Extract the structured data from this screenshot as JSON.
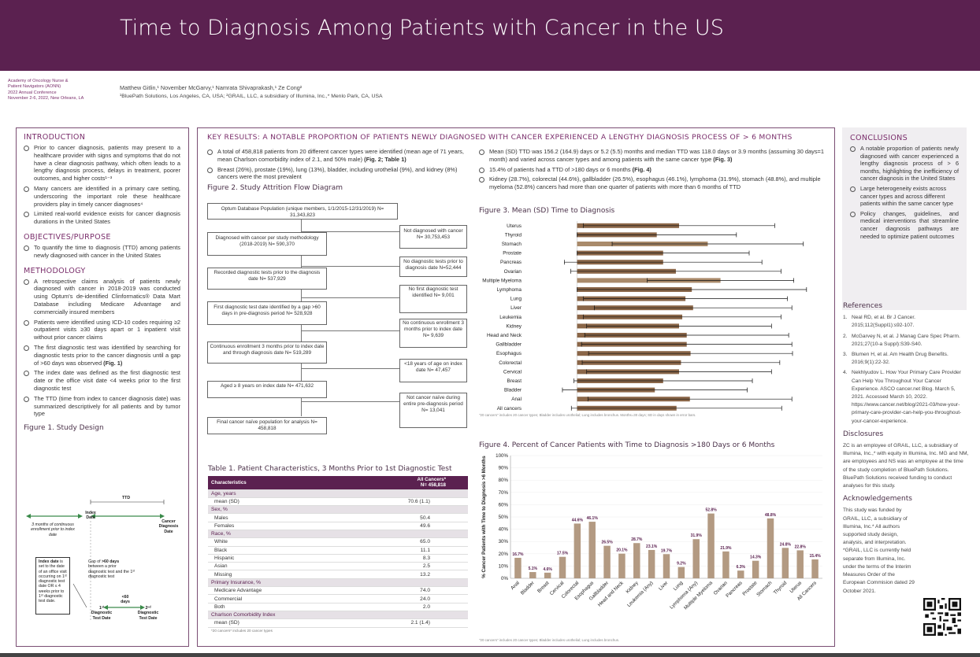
{
  "header": {
    "title": "Time to Diagnosis Among Patients with Cancer in the US"
  },
  "conference": {
    "line1": "Academy of Oncology Nurse &",
    "line2": "Patient Navigators (AONN)",
    "line3": "2022 Annual Conference",
    "line4": "November 2-6, 2022, New Orleans, LA"
  },
  "authors": {
    "names": "Matthew Gitlin,¹ November McGarvy,¹ Namrata Shivaprakash,¹ Ze Cong²",
    "affiliations": "¹BluePath Solutions, Los Angeles, CA, USA;  ²GRAIL, LLC, a subsidiary of Illumina, Inc.,* Menlo Park, CA, USA"
  },
  "introduction": {
    "heading": "INTRODUCTION",
    "b1": "Prior to cancer diagnosis, patients may present to a healthcare provider with signs and symptoms that do not have a clear diagnosis pathway, which often leads to a lengthy diagnosis process, delays in treatment, poorer outcomes, and higher costs¹⁻³",
    "b2": "Many cancers are identified in a primary care setting, underscoring the important role these healthcare providers play in timely cancer diagnoses⁴",
    "b3": "Limited real-world evidence exists for cancer diagnosis durations in the United States"
  },
  "objectives": {
    "heading": "OBJECTIVES/PURPOSE",
    "b1": "To quantify the time to diagnosis (TTD) among patients newly diagnosed with cancer in the United States"
  },
  "methodology": {
    "heading": "METHODOLOGY",
    "b1": "A retrospective claims analysis of patients newly diagnosed with cancer in 2018-2019 was conducted using Optum's de-identified Clinformatics® Data Mart Database including Medicare Advantage and commercially insured members",
    "b2": "Patients were identified using ICD-10 codes requiring ≥2 outpatient visits ≥30 days apart or 1 inpatient visit without prior cancer claims",
    "b3": "The first diagnostic test was identified by searching for diagnostic tests prior to the cancer diagnosis until a gap of >60 days was observed",
    "b3ref": "(Fig. 1)",
    "b4": "The index date was defined as the first diagnostic test date or the office visit date <4 weeks prior to the first diagnostic test",
    "b5": "The TTD (time from index to cancer diagnosis date) was summarized descriptively for all patients and by tumor type"
  },
  "figure1": {
    "title": "Figure 1. Study Design",
    "ttd": "TTD",
    "index": "Index Date",
    "cancer": "Cancer Diagnosis Date",
    "cont": "3 months of continuous enrollment prior to index date",
    "boxbold": "Index date",
    "boxtext": " is set to the date of an office visit occurring on 1ˢᵗ diagnostic test date OR ≤ 4 weeks prior to 1ˢᵗ diagnostic test date.",
    "gap1": "Gap of ",
    "gapbold": ">60 days",
    "gap2": " between a prior diagnostic test and the 1ˢᵗ diagnostic test",
    "first": "1ˢᵗ Diagnostic Test Date",
    "sixty": "<60 days",
    "second": "2ⁿᵈ Diagnostic Test Date"
  },
  "keyresults": {
    "heading": "KEY RESULTS: A NOTABLE PROPORTION OF PATIENTS NEWLY DIAGNOSED WITH CANCER EXPERIENCED A LENGTHY DIAGNOSIS PROCESS OF > 6 MONTHS",
    "l1": "A total of 458,818 patients from 20 different cancer types were identified (mean age of 71 years, mean Charlson comorbidity index of 2.1, and 50% male)",
    "l1ref": "(Fig. 2; Table 1)",
    "l2": "Breast (26%), prostate (19%), lung (13%), bladder, including urothelial (9%), and kidney (8%) cancers were the most prevalent",
    "r1": "Mean (SD) TTD was 156.2 (164.9) days or 5.2 (5.5) months and median TTD was 118.0 days or 3.9 months (assuming 30 days=1 month) and varied across cancer types and among patients with the same cancer type",
    "r1ref": "(Fig. 3)",
    "r2": "15.4% of patients had a TTD of >180 days or 6 months",
    "r2ref": "(Fig. 4)",
    "r3": "Kidney (28.7%), colorectal (44.6%), gallbladder (26.5%), esophagus (46.1%), lymphoma (31.9%), stomach (48.8%), and multiple myeloma (52.8%) cancers had more than one quarter of patients with more than 6 months of TTD"
  },
  "figure2": {
    "title": "Figure 2. Study Attrition Flow Diagram",
    "main": [
      "Optum Database Population (unique members, 1/1/2015-12/31/2019) N= 31,343,823",
      "Diagnosed with cancer per study methodology (2018-2019) N= 590,370",
      "Recorded diagnostic tests prior to the diagnosis date N= 537,929",
      "First diagnostic test date identified by a gap >60 days in pre-diagnosis period N= 528,928",
      "Continuous enrollment 3 months prior to index date and through diagnosis date N= 519,289",
      "Aged ≥ 8 years on index date N= 471,632",
      "Final cancer naïve population for analysis N= 458,818"
    ],
    "side": [
      "Not diagnosed with cancer N= 30,753,453",
      "No diagnostic tests prior to diagnosis date N=52,444",
      "No first diagnostic test identified N= 9,001",
      "No continuous enrollment 3 months prior to index date N= 9,639",
      "<18 years of age on index date N= 47,457",
      "Not cancer naïve during entire pre-diagnosis period N= 13,041"
    ]
  },
  "table1": {
    "title": "Table 1. Patient Characteristics, 3 Months Prior to 1st Diagnostic Test",
    "col1": "Characteristics",
    "col2a": "All Cancers*",
    "col2b": "N= 458,818",
    "rows": [
      [
        "Age, years",
        ""
      ],
      [
        "mean (SD)",
        "70.6 (1.1)"
      ],
      [
        "Sex, %",
        ""
      ],
      [
        "Males",
        "50.4"
      ],
      [
        "Females",
        "49.6"
      ],
      [
        "Race, %",
        ""
      ],
      [
        "White",
        "65.0"
      ],
      [
        "Black",
        "11.1"
      ],
      [
        "Hispanic",
        "8.3"
      ],
      [
        "Asian",
        "2.5"
      ],
      [
        "Missing",
        "13.2"
      ],
      [
        "Primary Insurance, %",
        ""
      ],
      [
        "Medicare Advantage",
        "74.0"
      ],
      [
        "Commercial",
        "24.0"
      ],
      [
        "Both",
        "2.0"
      ],
      [
        "Charlson Comorbidity Index",
        ""
      ],
      [
        "mean (SD)",
        "2.1 (1.4)"
      ]
    ],
    "note": "*20 cancers* includes 20 cancer types"
  },
  "figure3": {
    "title": "Figure 3. Mean (SD) Time to Diagnosis",
    "note": "\"20 cancers\" includes 20 cancer types; Bladder includes urothelial; Lung includes bronchus. Months=30 days; SD in days shown in error bars."
  },
  "figure4": {
    "title": "Figure 4. Percent of Cancer Patients with Time to Diagnosis >180 Days or 6 Months",
    "note": "\"20 cancers\" includes 20 cancer types; Bladder includes urothelial; Lung includes bronchus."
  },
  "chart_data": [
    {
      "type": "bar",
      "orientation": "horizontal",
      "title": "Figure 3. Mean (SD) Time to Diagnosis",
      "categories": [
        "Uterus",
        "Thyroid",
        "Stomach",
        "Prostate",
        "Pancreas",
        "Ovarian",
        "Multiple Myeloma",
        "Lymphoma",
        "Lung",
        "Liver",
        "Leukemia",
        "Kidney",
        "Head and Neck",
        "Gallbladder",
        "Esophagus",
        "Colorectal",
        "Cervical",
        "Breast",
        "Bladder",
        "Anal",
        "All cancers"
      ],
      "values": [
        160,
        125,
        205,
        135,
        135,
        155,
        225,
        180,
        170,
        182,
        165,
        160,
        172,
        172,
        178,
        163,
        160,
        135,
        122,
        177,
        156
      ],
      "error_sd": [
        150,
        125,
        150,
        135,
        155,
        165,
        115,
        180,
        160,
        155,
        155,
        145,
        160,
        165,
        160,
        155,
        145,
        140,
        145,
        160,
        165
      ],
      "xticks_days": [
        "-60",
        "-40",
        "-20",
        "0",
        "20",
        "40",
        "60",
        "80",
        "100",
        "120",
        "140",
        "160",
        "180",
        "200",
        "220",
        "240",
        "260",
        "280",
        "300",
        "320",
        "340",
        "360",
        "380"
      ],
      "xticks_months": [
        "-2.0",
        "-1.3",
        "-0.7",
        "0",
        "0.7",
        "1.3",
        "2.0",
        "2.7",
        "3.3",
        "4.0",
        "4.7",
        "5.3",
        "6.0",
        "6.7",
        "7.3",
        "8.0",
        "8.7",
        "9.3",
        "10.0",
        "10.7",
        "11.3",
        "12.0",
        "12.7"
      ],
      "xlabel_days": "Days",
      "xlabel_months": "Months",
      "xlim": [
        -60,
        380
      ]
    },
    {
      "type": "bar",
      "title": "Figure 4. Percent of Cancer Patients with Time to Diagnosis >180 Days or 6 Months",
      "categories": [
        "Anal",
        "Bladder",
        "Breast",
        "Cervical",
        "Colorectal",
        "Esophagus",
        "Gallbladder",
        "Head and Neck",
        "Kidney",
        "Leukemia (Any)",
        "Liver",
        "Lung",
        "Lymphoma (Any)",
        "Multiple Myeloma",
        "Ovarian",
        "Pancreas",
        "Prostate",
        "Stomach",
        "Thyroid",
        "Uterus",
        "All Cancers"
      ],
      "values": [
        16.7,
        5.1,
        4.6,
        17.5,
        44.6,
        46.1,
        26.5,
        20.1,
        28.7,
        23.1,
        19.7,
        9.2,
        31.9,
        52.8,
        21.9,
        6.3,
        14.3,
        48.8,
        24.8,
        22.8,
        15.4
      ],
      "labels": [
        "16.7%",
        "5.1%",
        "4.6%",
        "17.5%",
        "44.6%",
        "46.1%",
        "26.5%",
        "20.1%",
        "28.7%",
        "23.1%",
        "19.7%",
        "9.2%",
        "31.9%",
        "52.8%",
        "21.9%",
        "6.3%",
        "14.3%",
        "48.8%",
        "24.8%",
        "22.8%",
        "15.4%"
      ],
      "ylabel": "% Cancer Patients with Time to Diagnosis >6 Months",
      "ylim": [
        0,
        100
      ],
      "yticks": [
        "0%",
        "10%",
        "20%",
        "30%",
        "40%",
        "50%",
        "60%",
        "70%",
        "80%",
        "90%",
        "100%"
      ]
    }
  ],
  "conclusions": {
    "heading": "CONCLUSIONS",
    "b1": "A notable proportion of patients newly diagnosed with cancer experienced a lengthy diagnosis process of > 6 months, highlighting the inefficiency of cancer diagnosis in the United States",
    "b2": "Large heterogeneity exists across cancer types and across different patients within the same cancer type",
    "b3": "Policy changes, guidelines, and medical interventions that streamline cancer diagnosis pathways are needed to optimize patient outcomes"
  },
  "references": {
    "heading": "References",
    "items": [
      {
        "n": "1.",
        "text": "Neal RD, et al. Br J Cancer. 2015;112(Suppl1):s92-107."
      },
      {
        "n": "2.",
        "text": "McGarvey N, et al. J Manag Care Spec Pharm. 2021;27(10-a Suppl):S39-S40."
      },
      {
        "n": "3.",
        "text": "Blumen H, et al. Am Health Drug Benefits. 2016;9(1):22-32."
      },
      {
        "n": "4.",
        "text": "Nekhlyudov L. How Your Primary Care Provider Can Help You Throughout Your Cancer Experience. ASCO cancer.net Blog. March 5, 2021. Accessed March 10, 2022. https://www.cancer.net/blog/2021-03/how-your-primary-care-provider-can-help-you-throughout-your-cancer-experience."
      }
    ]
  },
  "disclosures": {
    "heading": "Disclosures",
    "text": "ZC is an employee of GRAIL, LLC, a subsidiary of Illumina, Inc.,* with equity in Illumina, Inc. MG and NM, are employees and NS was an employee at the time of the study completion of BluePath Solutions. BluePath Solutions received funding to conduct analyses for this study."
  },
  "acknowledgements": {
    "heading": "Acknowledgements",
    "text": "This study was funded by GRAIL, LLC, a subsidiary of Illumina, Inc.* All authors supported study design, analysis, and interpretation. *GRAIL, LLC is currently held separate from Illumina, Inc. under the terms of the Interim Measures Order of the European Commision dated 29 October 2021."
  },
  "colors": {
    "brand": "#5b2150",
    "bar3": "#a98a6a",
    "bar4": "#b39a82",
    "bar3hi": "#8a6648"
  }
}
